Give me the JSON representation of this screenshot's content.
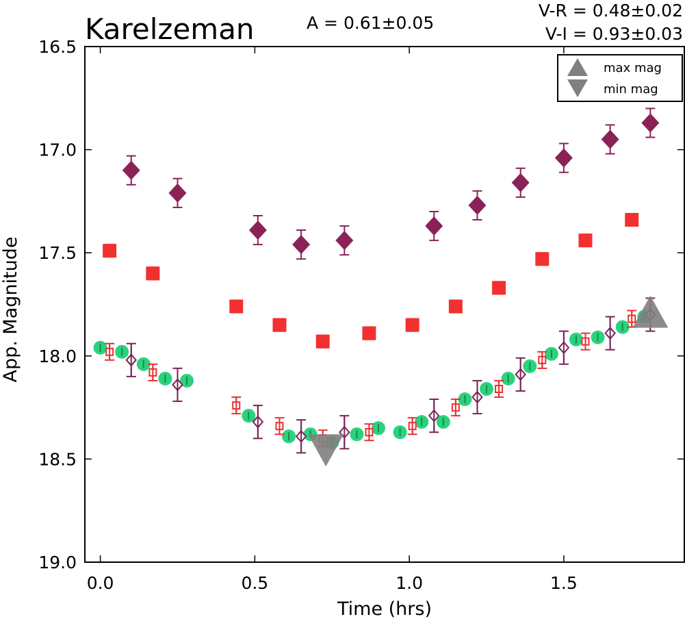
{
  "chart_data": {
    "type": "scatter",
    "title": "Karelzeman",
    "annotations": {
      "amplitude": "A  = 0.61±0.05",
      "vr": "V-R = 0.48±0.02",
      "vi": "V-I  = 0.93±0.03"
    },
    "xlabel": "Time (hrs)",
    "ylabel": "App. Magnitude",
    "xlim": [
      -0.05,
      1.89
    ],
    "ylim": [
      19.0,
      16.5
    ],
    "y_inverted": true,
    "xticks": [
      0.0,
      0.5,
      1.0,
      1.5
    ],
    "xtick_labels": [
      "0.0",
      "0.5",
      "1.0",
      "1.5"
    ],
    "yticks": [
      16.5,
      17.0,
      17.5,
      18.0,
      18.5,
      19.0
    ],
    "ytick_labels": [
      "16.5",
      "17.0",
      "17.5",
      "18.0",
      "18.5",
      "19.0"
    ],
    "grid": false,
    "legend_placement": "top-right",
    "legend": [
      {
        "label": "max mag",
        "marker": "triangle-up",
        "color": "#808080"
      },
      {
        "label": "min mag",
        "marker": "triangle-down",
        "color": "#808080"
      }
    ],
    "series": [
      {
        "marker": "diamond-filled",
        "color": "#8b2257",
        "error": 0.07,
        "x": [
          0.1,
          0.25,
          0.51,
          0.65,
          0.79,
          1.08,
          1.22,
          1.36,
          1.5,
          1.65,
          1.78
        ],
        "y": [
          17.1,
          17.21,
          17.39,
          17.46,
          17.44,
          17.37,
          17.27,
          17.16,
          17.04,
          16.95,
          16.87
        ]
      },
      {
        "marker": "square-filled",
        "color": "#f23030",
        "error": 0.03,
        "x": [
          0.03,
          0.17,
          0.44,
          0.58,
          0.72,
          0.87,
          1.01,
          1.15,
          1.29,
          1.43,
          1.57,
          1.72
        ],
        "y": [
          17.49,
          17.6,
          17.76,
          17.85,
          17.93,
          17.89,
          17.85,
          17.76,
          17.67,
          17.53,
          17.44,
          17.34
        ]
      },
      {
        "marker": "circle-filled",
        "color": "#2bd27d",
        "error": 0.02,
        "x": [
          0.0,
          0.07,
          0.14,
          0.21,
          0.28,
          0.48,
          0.61,
          0.68,
          0.75,
          0.83,
          0.9,
          0.97,
          1.04,
          1.11,
          1.18,
          1.25,
          1.32,
          1.39,
          1.46,
          1.54,
          1.61,
          1.69,
          1.76
        ],
        "y": [
          17.96,
          17.98,
          18.04,
          18.11,
          18.12,
          18.29,
          18.39,
          18.38,
          18.42,
          18.38,
          18.35,
          18.37,
          18.32,
          18.32,
          18.21,
          18.16,
          18.11,
          18.05,
          17.99,
          17.92,
          17.91,
          17.86,
          17.81
        ]
      },
      {
        "marker": "square-open",
        "color": "#e8302f",
        "error": 0.04,
        "x": [
          0.03,
          0.17,
          0.44,
          0.58,
          0.72,
          0.87,
          1.01,
          1.15,
          1.29,
          1.43,
          1.57,
          1.72
        ],
        "y": [
          17.98,
          18.08,
          18.24,
          18.34,
          18.4,
          18.37,
          18.34,
          18.25,
          18.16,
          18.02,
          17.93,
          17.82
        ]
      },
      {
        "marker": "diamond-open",
        "color": "#7a2356",
        "error": 0.08,
        "x": [
          0.1,
          0.25,
          0.51,
          0.65,
          0.79,
          1.08,
          1.22,
          1.36,
          1.5,
          1.65,
          1.78
        ],
        "y": [
          18.02,
          18.14,
          18.32,
          18.39,
          18.37,
          18.29,
          18.2,
          18.09,
          17.96,
          17.89,
          17.8
        ]
      }
    ],
    "extrema": {
      "max": {
        "x": 1.78,
        "y": 17.83,
        "color": "#808080"
      },
      "min": {
        "x": 0.73,
        "y": 18.42,
        "color": "#808080"
      }
    }
  }
}
